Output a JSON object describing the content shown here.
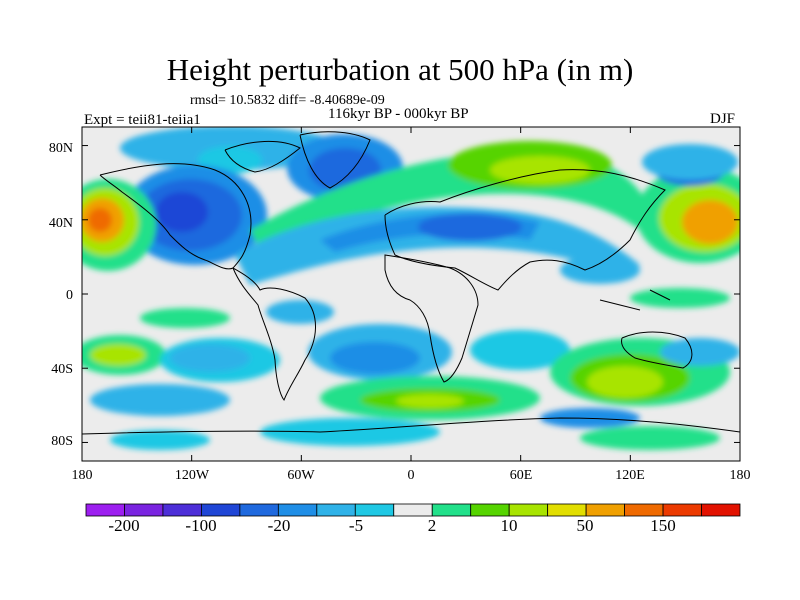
{
  "title": "Height perturbation at 500 hPa (in m)",
  "stats": "rmsd= 10.5832 diff= -8.40689e-09",
  "period": "116kyr BP - 000kyr BP",
  "experiment": "Expt = teii81-teiia1",
  "season": "DJF",
  "lat_labels": [
    "80N",
    "40N",
    "0",
    "40S",
    "80S"
  ],
  "lon_labels": [
    "180",
    "120W",
    "60W",
    "0",
    "60E",
    "120E",
    "180"
  ],
  "colorbar": {
    "colors": [
      "#9d1ff0",
      "#7a24e0",
      "#4d2fd8",
      "#1f46d6",
      "#1f69de",
      "#1f8ee6",
      "#2fb2e8",
      "#1fc8e4",
      "#ececec",
      "#22e08a",
      "#56d400",
      "#a8e400",
      "#e2de00",
      "#f0a000",
      "#ef6a00",
      "#ec3a00",
      "#e21200"
    ],
    "labels": [
      "-200",
      "-100",
      "-20",
      "-5",
      "2",
      "10",
      "50",
      "150"
    ]
  }
}
